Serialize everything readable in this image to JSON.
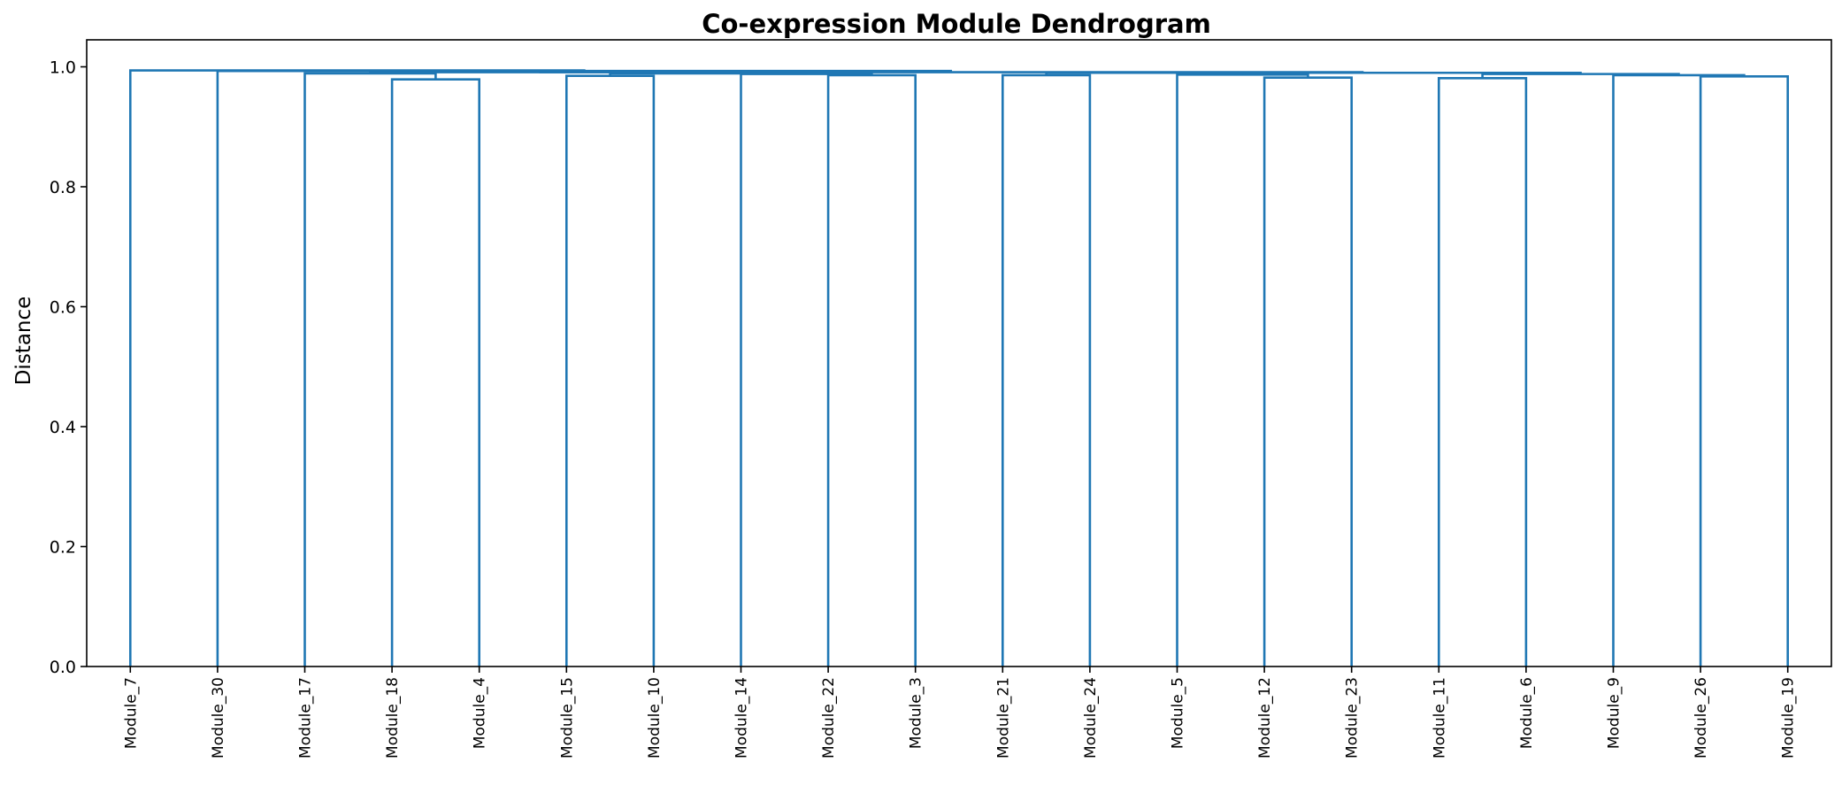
{
  "chart_data": {
    "type": "dendrogram",
    "title": "Co-expression Module Dendrogram",
    "xlabel": "",
    "ylabel": "Distance",
    "ylim": [
      0,
      1.045
    ],
    "yticks": [
      0.0,
      0.2,
      0.4,
      0.6,
      0.8,
      1.0
    ],
    "ytick_labels": [
      "0.0",
      "0.2",
      "0.4",
      "0.6",
      "0.8",
      "1.0"
    ],
    "grid": false,
    "link_color": "#1f77b4",
    "leaves": [
      "Module_7",
      "Module_30",
      "Module_17",
      "Module_18",
      "Module_4",
      "Module_15",
      "Module_10",
      "Module_14",
      "Module_22",
      "Module_3",
      "Module_21",
      "Module_24",
      "Module_5",
      "Module_12",
      "Module_23",
      "Module_11",
      "Module_6",
      "Module_9",
      "Module_26",
      "Module_19"
    ],
    "merges": [
      {
        "left": "Module_18",
        "right": "Module_4",
        "height": 0.979
      },
      {
        "left": "Module_17",
        "right": "C1",
        "height": 0.989
      },
      {
        "left": "Module_15",
        "right": "Module_10",
        "height": 0.985
      },
      {
        "left": "Module_22",
        "right": "Module_3",
        "height": 0.986
      },
      {
        "left": "Module_14",
        "right": "C4",
        "height": 0.988
      },
      {
        "left": "C3",
        "right": "C5",
        "height": 0.989
      },
      {
        "left": "C2",
        "right": "C6",
        "height": 0.991
      },
      {
        "left": "Module_21",
        "right": "Module_24",
        "height": 0.986
      },
      {
        "left": "Module_12",
        "right": "Module_23",
        "height": 0.982
      },
      {
        "left": "Module_5",
        "right": "C9",
        "height": 0.987
      },
      {
        "left": "C8",
        "right": "C10",
        "height": 0.99
      },
      {
        "left": "Module_11",
        "right": "Module_6",
        "height": 0.981
      },
      {
        "left": "Module_26",
        "right": "Module_19",
        "height": 0.984
      },
      {
        "left": "Module_9",
        "right": "C13",
        "height": 0.986
      },
      {
        "left": "C12",
        "right": "C14",
        "height": 0.988
      },
      {
        "left": "C11",
        "right": "C15",
        "height": 0.99
      },
      {
        "left": "C7",
        "right": "C16",
        "height": 0.991
      },
      {
        "left": "Module_30",
        "right": "C17",
        "height": 0.993
      },
      {
        "left": "Module_7",
        "right": "C18",
        "height": 0.994
      }
    ]
  }
}
